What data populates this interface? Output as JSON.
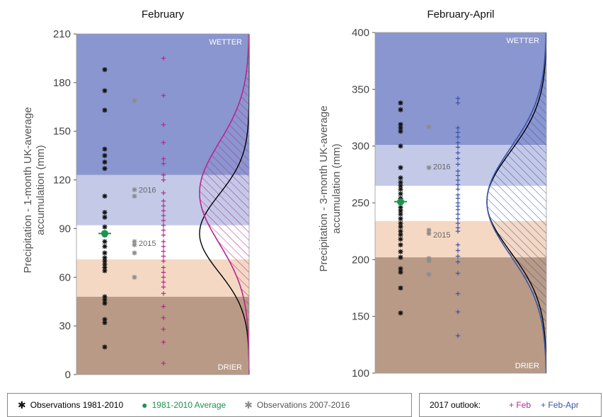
{
  "colors": {
    "wetter": "#8a96cf",
    "above": "#c3c9e7",
    "normal": "#ffffff",
    "below": "#f4d8c3",
    "drier": "#b89a86",
    "obs_hist": "#111111",
    "average": "#1a9450",
    "obs_recent": "#8c8c8c",
    "feb": "#b8268e",
    "febapr": "#3c55a8"
  },
  "legend": {
    "obs_hist": "Observations 1981-2010",
    "average": "1981-2010 Average",
    "obs_recent": "Observations 2007-2016",
    "outlook_label": "2017 outlook:",
    "feb": "+ Feb",
    "febapr": "+ Feb-Apr"
  },
  "chart_data": [
    {
      "type": "scatter",
      "title": "February",
      "ylabel": "Precipitation - 1-month UK-average accumulation (mm)",
      "ylim": [
        0,
        210
      ],
      "yticks": [
        "0",
        "30",
        "60",
        "90",
        "120",
        "150",
        "180",
        "210"
      ],
      "bands": [
        {
          "from": 123,
          "to": 210,
          "label": "WETTER"
        },
        {
          "from": 92,
          "to": 123,
          "label": ""
        },
        {
          "from": 71,
          "to": 92,
          "label": ""
        },
        {
          "from": 48,
          "to": 71,
          "label": ""
        },
        {
          "from": 0,
          "to": 48,
          "label": "DRIER"
        }
      ],
      "obs_hist": [
        188,
        175,
        163,
        139,
        135,
        131,
        127,
        110,
        100,
        97,
        91,
        86,
        82,
        79,
        75,
        72,
        70,
        68,
        66,
        64,
        48,
        46,
        44,
        34,
        32,
        17
      ],
      "average": 87,
      "obs_recent": [
        169,
        114,
        110,
        82,
        80,
        75,
        60
      ],
      "annotations": [
        {
          "text": "2016",
          "y": 114
        },
        {
          "text": "2015",
          "y": 81
        }
      ],
      "outlook_name": "+ Feb",
      "outlook": [
        195,
        172,
        154,
        143,
        133,
        130,
        123,
        120,
        112,
        107,
        104,
        101,
        98,
        95,
        92,
        89,
        86,
        82,
        79,
        76,
        73,
        70,
        66,
        63,
        60,
        57,
        54,
        50,
        42,
        35,
        28,
        20,
        7
      ],
      "dist_hist": {
        "mean": 87,
        "sd": 24
      },
      "dist_outlook": {
        "mean": 112,
        "sd": 31
      }
    },
    {
      "type": "scatter",
      "title": "February-April",
      "ylabel": "Precipitation - 3-month UK-average accumulation (mm)",
      "ylim": [
        100,
        400
      ],
      "yticks": [
        "100",
        "150",
        "200",
        "250",
        "300",
        "350",
        "400"
      ],
      "bands": [
        {
          "from": 301,
          "to": 400,
          "label": "WETTER"
        },
        {
          "from": 265,
          "to": 301,
          "label": ""
        },
        {
          "from": 234,
          "to": 265,
          "label": ""
        },
        {
          "from": 202,
          "to": 234,
          "label": ""
        },
        {
          "from": 100,
          "to": 202,
          "label": "DRIER"
        }
      ],
      "obs_hist": [
        338,
        332,
        319,
        316,
        313,
        300,
        281,
        272,
        268,
        265,
        262,
        258,
        254,
        250,
        246,
        243,
        240,
        236,
        232,
        229,
        225,
        222,
        218,
        213,
        207,
        202,
        192,
        189,
        175,
        153
      ],
      "average": 251,
      "obs_recent": [
        317,
        281,
        226,
        223,
        201,
        199,
        187
      ],
      "annotations": [
        {
          "text": "2016",
          "y": 282
        },
        {
          "text": "2015",
          "y": 222
        }
      ],
      "outlook_name": "+ Feb-Apr",
      "outlook": [
        342,
        338,
        316,
        312,
        308,
        303,
        299,
        294,
        289,
        284,
        278,
        274,
        270,
        266,
        262,
        257,
        254,
        250,
        247,
        244,
        240,
        236,
        232,
        228,
        225,
        213,
        208,
        203,
        198,
        188,
        170,
        154,
        133
      ],
      "dist_hist": {
        "mean": 251,
        "sd": 44
      },
      "dist_outlook": {
        "mean": 251,
        "sd": 47
      }
    }
  ]
}
